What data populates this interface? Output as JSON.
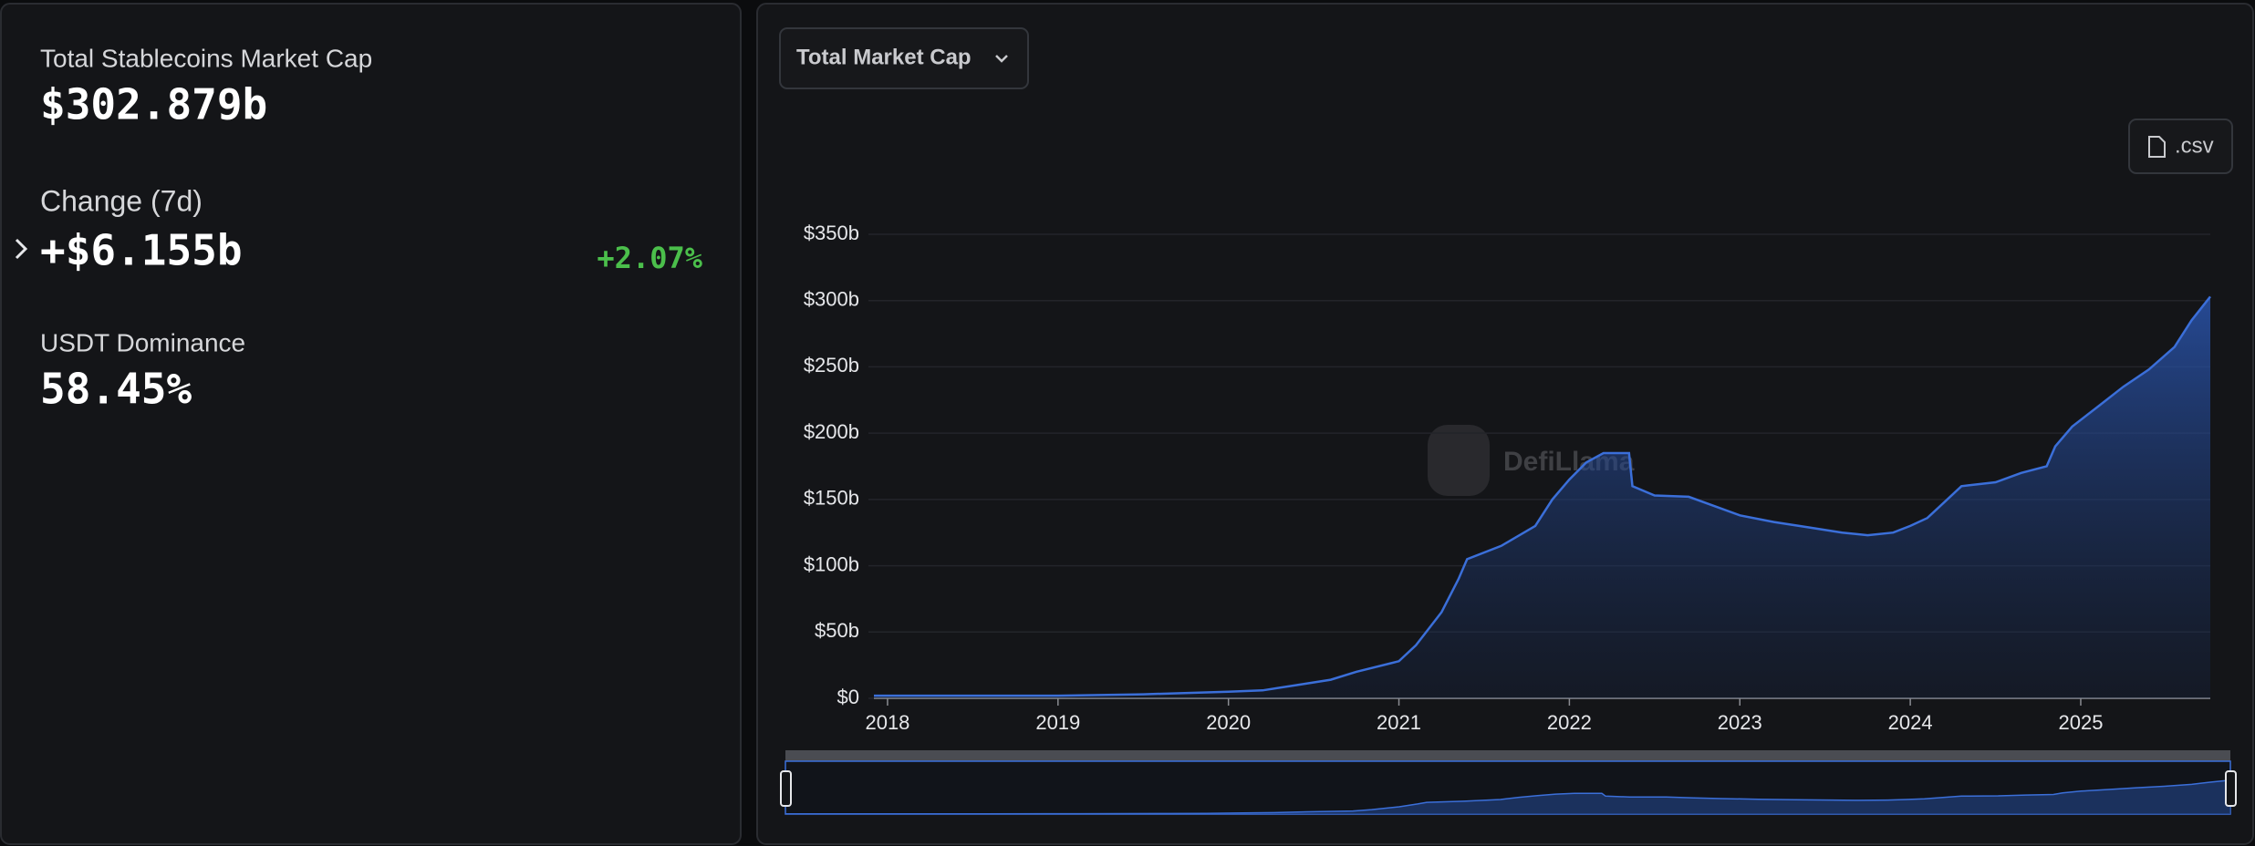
{
  "stats": [
    {
      "label": "Total Stablecoins Market Cap",
      "value": "$302.879b"
    },
    {
      "label": "Change (7d)",
      "value": "+$6.155b",
      "change": "+2.07%"
    },
    {
      "label": "USDT Dominance",
      "value": "58.45%"
    }
  ],
  "controls": {
    "dropdown": "Total Market Cap",
    "download": ".csv"
  },
  "watermark": "DefiLlama",
  "chart_data": {
    "type": "area",
    "color": "#3b6fd9",
    "x": [
      2017.92,
      2019.0,
      2019.5,
      2020.0,
      2020.2,
      2020.4,
      2020.6,
      2020.75,
      2021.0,
      2021.1,
      2021.25,
      2021.35,
      2021.4,
      2021.6,
      2021.8,
      2021.9,
      2022.0,
      2022.1,
      2022.2,
      2022.35,
      2022.37,
      2022.5,
      2022.7,
      2022.85,
      2023.0,
      2023.2,
      2023.4,
      2023.6,
      2023.75,
      2023.9,
      2024.0,
      2024.1,
      2024.2,
      2024.3,
      2024.5,
      2024.65,
      2024.8,
      2024.85,
      2024.95,
      2025.1,
      2025.25,
      2025.4,
      2025.55,
      2025.65,
      2025.76
    ],
    "values": [
      2,
      2,
      3,
      5,
      6,
      10,
      14,
      20,
      28,
      40,
      65,
      90,
      105,
      115,
      130,
      150,
      165,
      178,
      185,
      185,
      160,
      153,
      152,
      145,
      138,
      133,
      129,
      125,
      123,
      125,
      130,
      136,
      148,
      160,
      163,
      170,
      175,
      190,
      205,
      220,
      235,
      248,
      265,
      285,
      303
    ],
    "xlim": [
      2017.92,
      2025.76
    ],
    "xticks": [
      2018,
      2019,
      2020,
      2021,
      2022,
      2023,
      2024,
      2025
    ],
    "ylim": [
      0,
      350
    ],
    "yticks": [
      {
        "value": 0,
        "label": "$0"
      },
      {
        "value": 50,
        "label": "$50b"
      },
      {
        "value": 100,
        "label": "$100b"
      },
      {
        "value": 150,
        "label": "$150b"
      },
      {
        "value": 200,
        "label": "$200b"
      },
      {
        "value": 250,
        "label": "$250b"
      },
      {
        "value": 300,
        "label": "$300b"
      },
      {
        "value": 350,
        "label": "$350b"
      }
    ],
    "grid": true
  }
}
